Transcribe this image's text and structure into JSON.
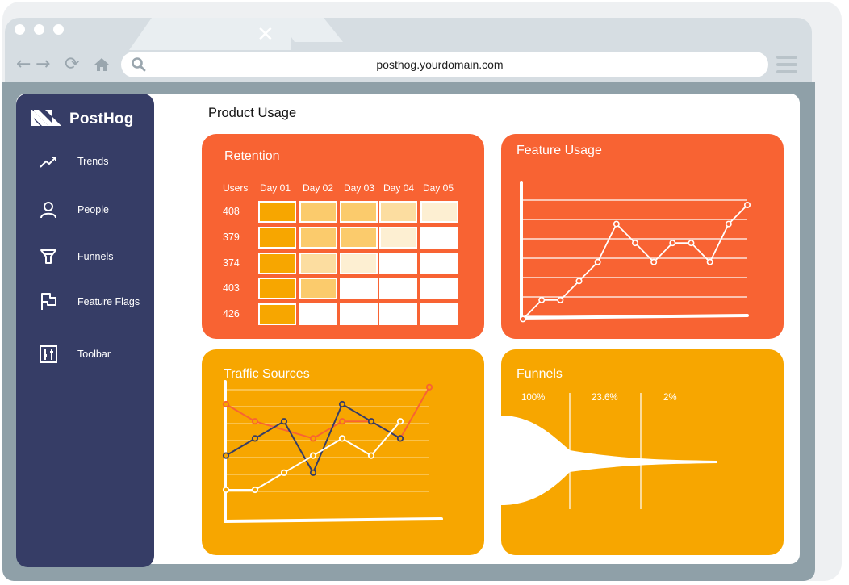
{
  "browser": {
    "url": "posthog.yourdomain.com"
  },
  "sidebar": {
    "logo": "PostHog",
    "items": [
      {
        "label": "Trends",
        "icon": "trend-line-icon"
      },
      {
        "label": "People",
        "icon": "person-icon"
      },
      {
        "label": "Funnels",
        "icon": "funnel-icon"
      },
      {
        "label": "Feature Flags",
        "icon": "flag-icon"
      },
      {
        "label": "Toolbar",
        "icon": "sliders-icon"
      }
    ]
  },
  "main": {
    "title": "Product Usage"
  },
  "retention": {
    "title": "Retention",
    "headers": [
      "Users",
      "Day 01",
      "Day 02",
      "Day 03",
      "Day 04",
      "Day 05"
    ],
    "rows": [
      {
        "users": "408",
        "levels": [
          4,
          3,
          3,
          2,
          1
        ]
      },
      {
        "users": "379",
        "levels": [
          4,
          3,
          3,
          1,
          0
        ]
      },
      {
        "users": "374",
        "levels": [
          4,
          2,
          1,
          0,
          0
        ]
      },
      {
        "users": "403",
        "levels": [
          4,
          3,
          0,
          0,
          0
        ]
      },
      {
        "users": "426",
        "levels": [
          4,
          0,
          0,
          0,
          0
        ]
      }
    ],
    "level_colors": [
      "#ffffff",
      "#fdefd2",
      "#fcdda0",
      "#fbcb6c",
      "#f7a600"
    ]
  },
  "feature_usage": {
    "title": "Feature Usage",
    "chart_data": {
      "type": "line",
      "values": [
        1,
        2,
        2,
        3,
        4,
        6,
        5,
        4,
        5,
        5,
        4,
        6,
        7
      ],
      "ylim": [
        0,
        7
      ],
      "grid": true
    }
  },
  "traffic_sources": {
    "title": "Traffic Sources",
    "chart_data": {
      "type": "line",
      "ylim": [
        0,
        7
      ],
      "grid": true,
      "series": [
        {
          "color": "#f86333",
          "values": [
            6,
            5,
            null,
            4,
            5,
            5,
            4,
            7
          ]
        },
        {
          "color": "#363d66",
          "values": [
            3,
            4,
            5,
            2,
            6,
            5,
            4,
            null
          ]
        },
        {
          "color": "#ffffff",
          "values": [
            1,
            1,
            2,
            3,
            4,
            3,
            5,
            null
          ]
        }
      ]
    }
  },
  "funnels": {
    "title": "Funnels",
    "steps": [
      "100%",
      "23.6%",
      "2%"
    ]
  }
}
